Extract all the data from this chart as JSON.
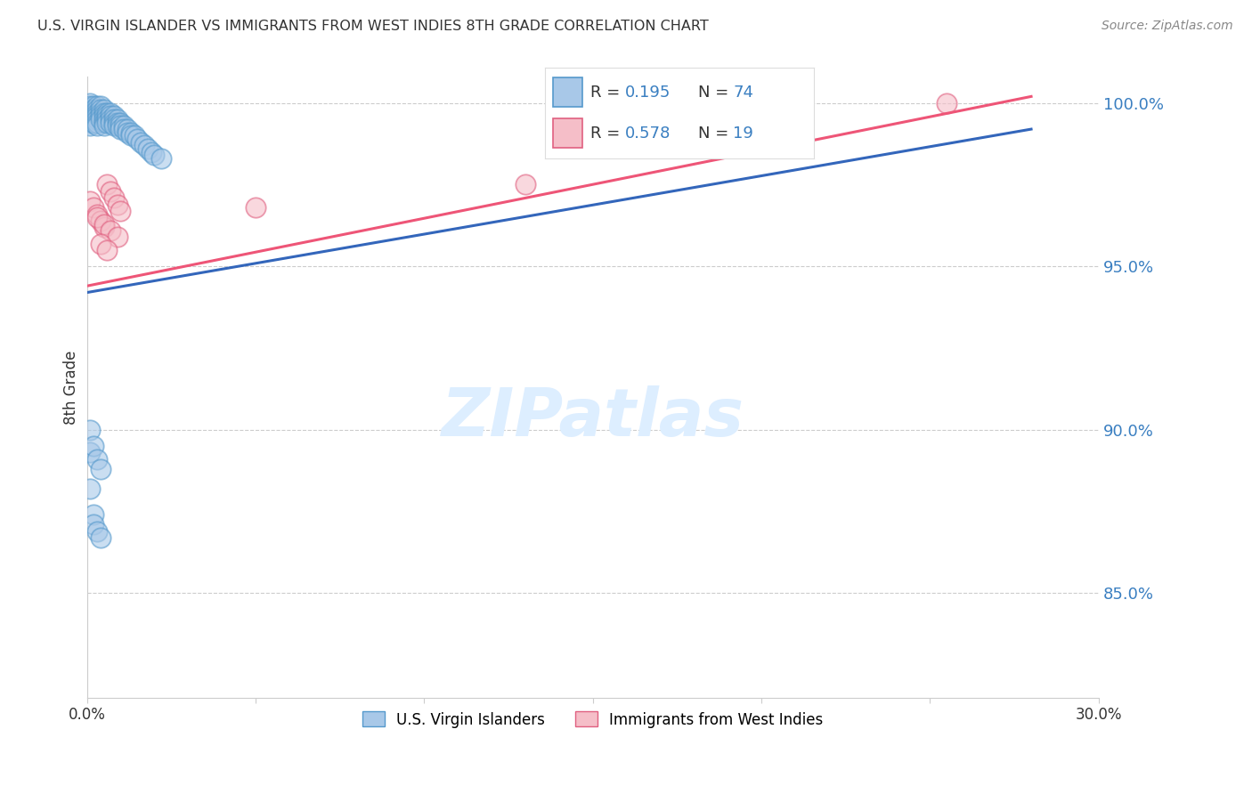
{
  "title": "U.S. VIRGIN ISLANDER VS IMMIGRANTS FROM WEST INDIES 8TH GRADE CORRELATION CHART",
  "source": "Source: ZipAtlas.com",
  "ylabel": "8th Grade",
  "right_ytick_labels": [
    "100.0%",
    "95.0%",
    "90.0%",
    "85.0%"
  ],
  "right_ytick_values": [
    1.0,
    0.95,
    0.9,
    0.85
  ],
  "xlim": [
    0.0,
    0.3
  ],
  "ylim": [
    0.818,
    1.008
  ],
  "blue_r": 0.195,
  "blue_n": 74,
  "pink_r": 0.578,
  "pink_n": 19,
  "blue_fill_color": "#a8c8e8",
  "blue_edge_color": "#5599cc",
  "pink_fill_color": "#f5bec8",
  "pink_edge_color": "#e06080",
  "blue_line_color": "#3366bb",
  "pink_line_color": "#ee5577",
  "text_color": "#333333",
  "legend_value_color": "#3a7fc1",
  "grid_color": "#cccccc",
  "watermark_color": "#ddeeff",
  "blue_x": [
    0.001,
    0.001,
    0.001,
    0.001,
    0.001,
    0.001,
    0.001,
    0.001,
    0.002,
    0.002,
    0.002,
    0.002,
    0.002,
    0.002,
    0.003,
    0.003,
    0.003,
    0.003,
    0.003,
    0.003,
    0.003,
    0.004,
    0.004,
    0.004,
    0.004,
    0.004,
    0.005,
    0.005,
    0.005,
    0.005,
    0.005,
    0.005,
    0.006,
    0.006,
    0.006,
    0.006,
    0.007,
    0.007,
    0.007,
    0.007,
    0.008,
    0.008,
    0.008,
    0.008,
    0.009,
    0.009,
    0.009,
    0.01,
    0.01,
    0.01,
    0.011,
    0.011,
    0.012,
    0.012,
    0.013,
    0.013,
    0.014,
    0.015,
    0.016,
    0.017,
    0.018,
    0.019,
    0.02,
    0.022,
    0.001,
    0.001,
    0.002,
    0.002,
    0.003,
    0.004,
    0.001,
    0.002,
    0.003,
    0.004
  ],
  "blue_y": [
    1.0,
    0.999,
    0.998,
    0.997,
    0.996,
    0.995,
    0.994,
    0.993,
    0.999,
    0.998,
    0.997,
    0.996,
    0.995,
    0.994,
    0.999,
    0.998,
    0.997,
    0.996,
    0.995,
    0.994,
    0.993,
    0.999,
    0.998,
    0.997,
    0.996,
    0.995,
    0.998,
    0.997,
    0.996,
    0.995,
    0.994,
    0.993,
    0.997,
    0.996,
    0.995,
    0.994,
    0.997,
    0.996,
    0.995,
    0.994,
    0.996,
    0.995,
    0.994,
    0.993,
    0.995,
    0.994,
    0.993,
    0.994,
    0.993,
    0.992,
    0.993,
    0.992,
    0.992,
    0.991,
    0.991,
    0.99,
    0.99,
    0.989,
    0.988,
    0.987,
    0.986,
    0.985,
    0.984,
    0.983,
    0.893,
    0.882,
    0.874,
    0.871,
    0.869,
    0.867,
    0.9,
    0.895,
    0.891,
    0.888
  ],
  "pink_x": [
    0.001,
    0.002,
    0.003,
    0.004,
    0.005,
    0.006,
    0.007,
    0.008,
    0.009,
    0.01,
    0.003,
    0.005,
    0.007,
    0.009,
    0.004,
    0.006,
    0.05,
    0.13,
    0.255
  ],
  "pink_y": [
    0.97,
    0.968,
    0.966,
    0.964,
    0.962,
    0.975,
    0.973,
    0.971,
    0.969,
    0.967,
    0.965,
    0.963,
    0.961,
    0.959,
    0.957,
    0.955,
    0.968,
    0.975,
    1.0
  ],
  "blue_line_x0": 0.0,
  "blue_line_x1": 0.28,
  "blue_line_y0": 0.942,
  "blue_line_y1": 0.992,
  "pink_line_x0": 0.0,
  "pink_line_x1": 0.28,
  "pink_line_y0": 0.944,
  "pink_line_y1": 1.002
}
